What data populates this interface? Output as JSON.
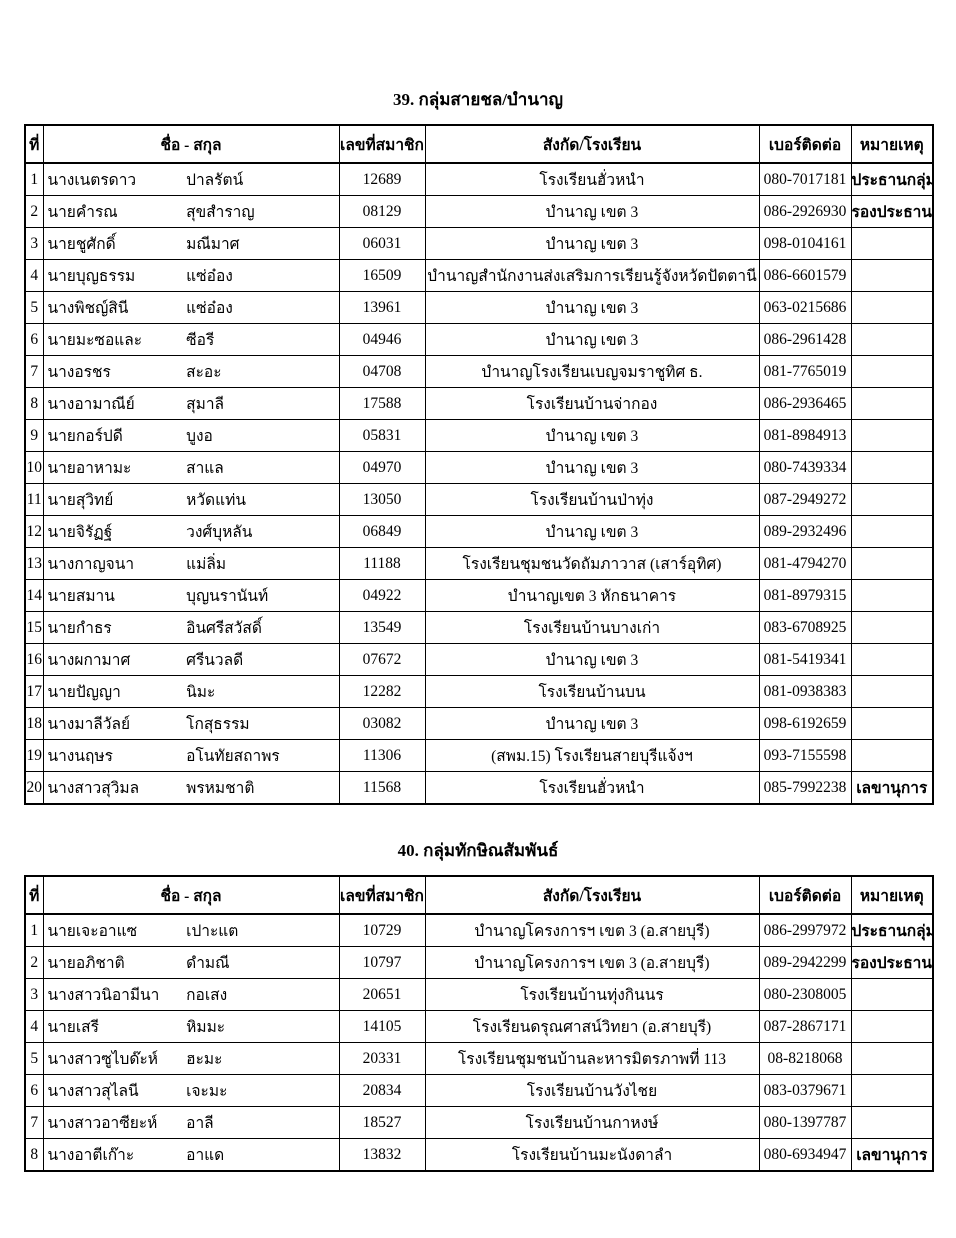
{
  "headers": {
    "no": "ที่",
    "name": "ชื่อ - สกุล",
    "member": "เลขที่สมาชิก",
    "school": "สังกัด/โรงเรียน",
    "phone": "เบอร์ติดต่อ",
    "remark": "หมายเหตุ"
  },
  "tables": [
    {
      "title": "39. กลุ่มสายชล/บำนาญ",
      "rows": [
        {
          "no": "1",
          "first": "นางเนตรดาว",
          "last": "ปาลรัตน์",
          "member": "12689",
          "school": "โรงเรียนฮั่วหนำ",
          "phone": "080-7017181",
          "remark": "ประธานกลุ่ม"
        },
        {
          "no": "2",
          "first": "นายคำรณ",
          "last": "สุขสำราญ",
          "member": "08129",
          "school": "บำนาญ เขต 3",
          "phone": "086-2926930",
          "remark": "รองประธาน"
        },
        {
          "no": "3",
          "first": "นายชูศักดิ์",
          "last": "มณีมาศ",
          "member": "06031",
          "school": "บำนาญ เขต 3",
          "phone": "098-0104161",
          "remark": ""
        },
        {
          "no": "4",
          "first": "นายบุญธรรม",
          "last": "แซ่อ๋อง",
          "member": "16509",
          "school": "บำนาญสำนักงานส่งเสริมการเรียนรู้จังหวัดปัตตานี",
          "phone": "086-6601579",
          "remark": ""
        },
        {
          "no": "5",
          "first": "นางพิชญ์สินี",
          "last": "แซ่อ๋อง",
          "member": "13961",
          "school": "บำนาญ เขต 3",
          "phone": "063-0215686",
          "remark": ""
        },
        {
          "no": "6",
          "first": "นายมะซอและ",
          "last": "ซีอรี",
          "member": "04946",
          "school": "บำนาญ เขต 3",
          "phone": "086-2961428",
          "remark": ""
        },
        {
          "no": "7",
          "first": "นางอรชร",
          "last": "สะอะ",
          "member": "04708",
          "school": "บำนาญโรงเรียนเบญจมราชูทิศ ธ.",
          "phone": "081-7765019",
          "remark": ""
        },
        {
          "no": "8",
          "first": "นางอามาณีย์",
          "last": "สุมาลี",
          "member": "17588",
          "school": "โรงเรียนบ้านจ่ากอง",
          "phone": "086-2936465",
          "remark": ""
        },
        {
          "no": "9",
          "first": "นายกอร์ปดี",
          "last": "บูงอ",
          "member": "05831",
          "school": "บำนาญ เขต 3",
          "phone": "081-8984913",
          "remark": ""
        },
        {
          "no": "10",
          "first": "นายอาหามะ",
          "last": "สาแล",
          "member": "04970",
          "school": "บำนาญ เขต 3",
          "phone": "080-7439334",
          "remark": ""
        },
        {
          "no": "11",
          "first": "นายสุวิทย์",
          "last": "หวัดแท่น",
          "member": "13050",
          "school": "โรงเรียนบ้านป่าทุ่ง",
          "phone": "087-2949272",
          "remark": ""
        },
        {
          "no": "12",
          "first": "นายจิรัฏฐ์",
          "last": "วงศ์บุหลัน",
          "member": "06849",
          "school": "บำนาญ เขต 3",
          "phone": "089-2932496",
          "remark": ""
        },
        {
          "no": "13",
          "first": "นางกาญจนา",
          "last": "แม่ลิ่ม",
          "member": "11188",
          "school": "โรงเรียนชุมชนวัดถัมภาวาส (เสาร์อุทิศ)",
          "phone": "081-4794270",
          "remark": ""
        },
        {
          "no": "14",
          "first": "นายสมาน",
          "last": "บุญนรานันท์",
          "member": "04922",
          "school": "บำนาญเขต 3 หักธนาคาร",
          "phone": "081-8979315",
          "remark": ""
        },
        {
          "no": "15",
          "first": "นายกำธร",
          "last": "อินศรีสวัสดิ์",
          "member": "13549",
          "school": "โรงเรียนบ้านบางเก่า",
          "phone": "083-6708925",
          "remark": ""
        },
        {
          "no": "16",
          "first": "นางผกามาศ",
          "last": "ศรีนวลดี",
          "member": "07672",
          "school": "บำนาญ เขต 3",
          "phone": "081-5419341",
          "remark": ""
        },
        {
          "no": "17",
          "first": "นายปัญญา",
          "last": "นิมะ",
          "member": "12282",
          "school": "โรงเรียนบ้านบน",
          "phone": "081-0938383",
          "remark": ""
        },
        {
          "no": "18",
          "first": "นางมาลีวัลย์",
          "last": "โกสุธรรม",
          "member": "03082",
          "school": "บำนาญ เขต 3",
          "phone": "098-6192659",
          "remark": ""
        },
        {
          "no": "19",
          "first": "นางนฤษร",
          "last": "อโนทัยสถาพร",
          "member": "11306",
          "school": "(สพม.15) โรงเรียนสายบุรีแจ้งฯ",
          "phone": "093-7155598",
          "remark": ""
        },
        {
          "no": "20",
          "first": "นางสาวสุวิมล",
          "last": "พรหมชาติ",
          "member": "11568",
          "school": "โรงเรียนฮั่วหนำ",
          "phone": "085-7992238",
          "remark": "เลขานุการ"
        }
      ]
    },
    {
      "title": "40. กลุ่มทักษิณสัมพันธ์",
      "rows": [
        {
          "no": "1",
          "first": "นายเจะอาแซ",
          "last": "เปาะแต",
          "member": "10729",
          "school": "บำนาญโครงการฯ เขต 3 (อ.สายบุรี)",
          "phone": "086-2997972",
          "remark": "ประธานกลุ่ม"
        },
        {
          "no": "2",
          "first": "นายอภิชาติ",
          "last": "ดำมณี",
          "member": "10797",
          "school": "บำนาญโครงการฯ เขต 3 (อ.สายบุรี)",
          "phone": "089-2942299",
          "remark": "รองประธาน"
        },
        {
          "no": "3",
          "first": "นางสาวนิอามีนา",
          "last": "กอเสง",
          "member": "20651",
          "school": "โรงเรียนบ้านทุ่งกินนร",
          "phone": "080-2308005",
          "remark": ""
        },
        {
          "no": "4",
          "first": "นายเสรี",
          "last": "หิมมะ",
          "member": "14105",
          "school": "โรงเรียนดรุณศาสน์วิทยา (อ.สายบุรี)",
          "phone": "087-2867171",
          "remark": ""
        },
        {
          "no": "5",
          "first": "นางสาวซูไบด๊ะห์",
          "last": "ฮะมะ",
          "member": "20331",
          "school": "โรงเรียนชุมชนบ้านละหารมิตรภาพที่ 113",
          "phone": "08-8218068",
          "remark": ""
        },
        {
          "no": "6",
          "first": "นางสาวสุไลนี",
          "last": "เจะมะ",
          "member": "20834",
          "school": "โรงเรียนบ้านวังไชย",
          "phone": "083-0379671",
          "remark": ""
        },
        {
          "no": "7",
          "first": "นางสาวอาซียะห์",
          "last": "อาลี",
          "member": "18527",
          "school": "โรงเรียนบ้านกาหงษ์",
          "phone": "080-1397787",
          "remark": ""
        },
        {
          "no": "8",
          "first": "นางอาตีเก๊าะ",
          "last": "อาแด",
          "member": "13832",
          "school": "โรงเรียนบ้านมะนังดาลำ",
          "phone": "080-6934947",
          "remark": "เลขานุการ"
        }
      ]
    }
  ]
}
